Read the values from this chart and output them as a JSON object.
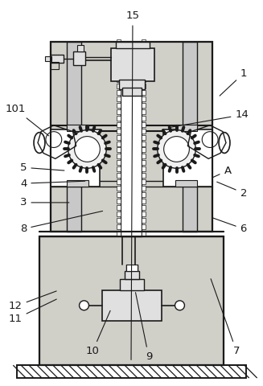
{
  "background_color": "#ffffff",
  "dot_fill_color": "#d0cfc8",
  "line_color": "#1a1a1a",
  "line_width": 1.2,
  "fig_width": 3.27,
  "fig_height": 4.8,
  "dpi": 100,
  "labels_data": [
    [
      "1",
      304,
      390,
      272,
      360
    ],
    [
      "2",
      304,
      240,
      268,
      255
    ],
    [
      "3",
      28,
      228,
      88,
      228
    ],
    [
      "4",
      28,
      252,
      108,
      255
    ],
    [
      "5",
      28,
      272,
      82,
      268
    ],
    [
      "6",
      304,
      195,
      262,
      210
    ],
    [
      "7",
      295,
      42,
      262,
      135
    ],
    [
      "8",
      28,
      195,
      130,
      218
    ],
    [
      "9",
      185,
      35,
      168,
      118
    ],
    [
      "10",
      115,
      42,
      138,
      95
    ],
    [
      "11",
      18,
      82,
      72,
      108
    ],
    [
      "12",
      18,
      98,
      72,
      118
    ],
    [
      "14",
      302,
      338,
      210,
      322
    ],
    [
      "15",
      165,
      462,
      163,
      28
    ],
    [
      "101",
      18,
      345,
      62,
      310
    ],
    [
      "A",
      284,
      268,
      262,
      258
    ]
  ]
}
